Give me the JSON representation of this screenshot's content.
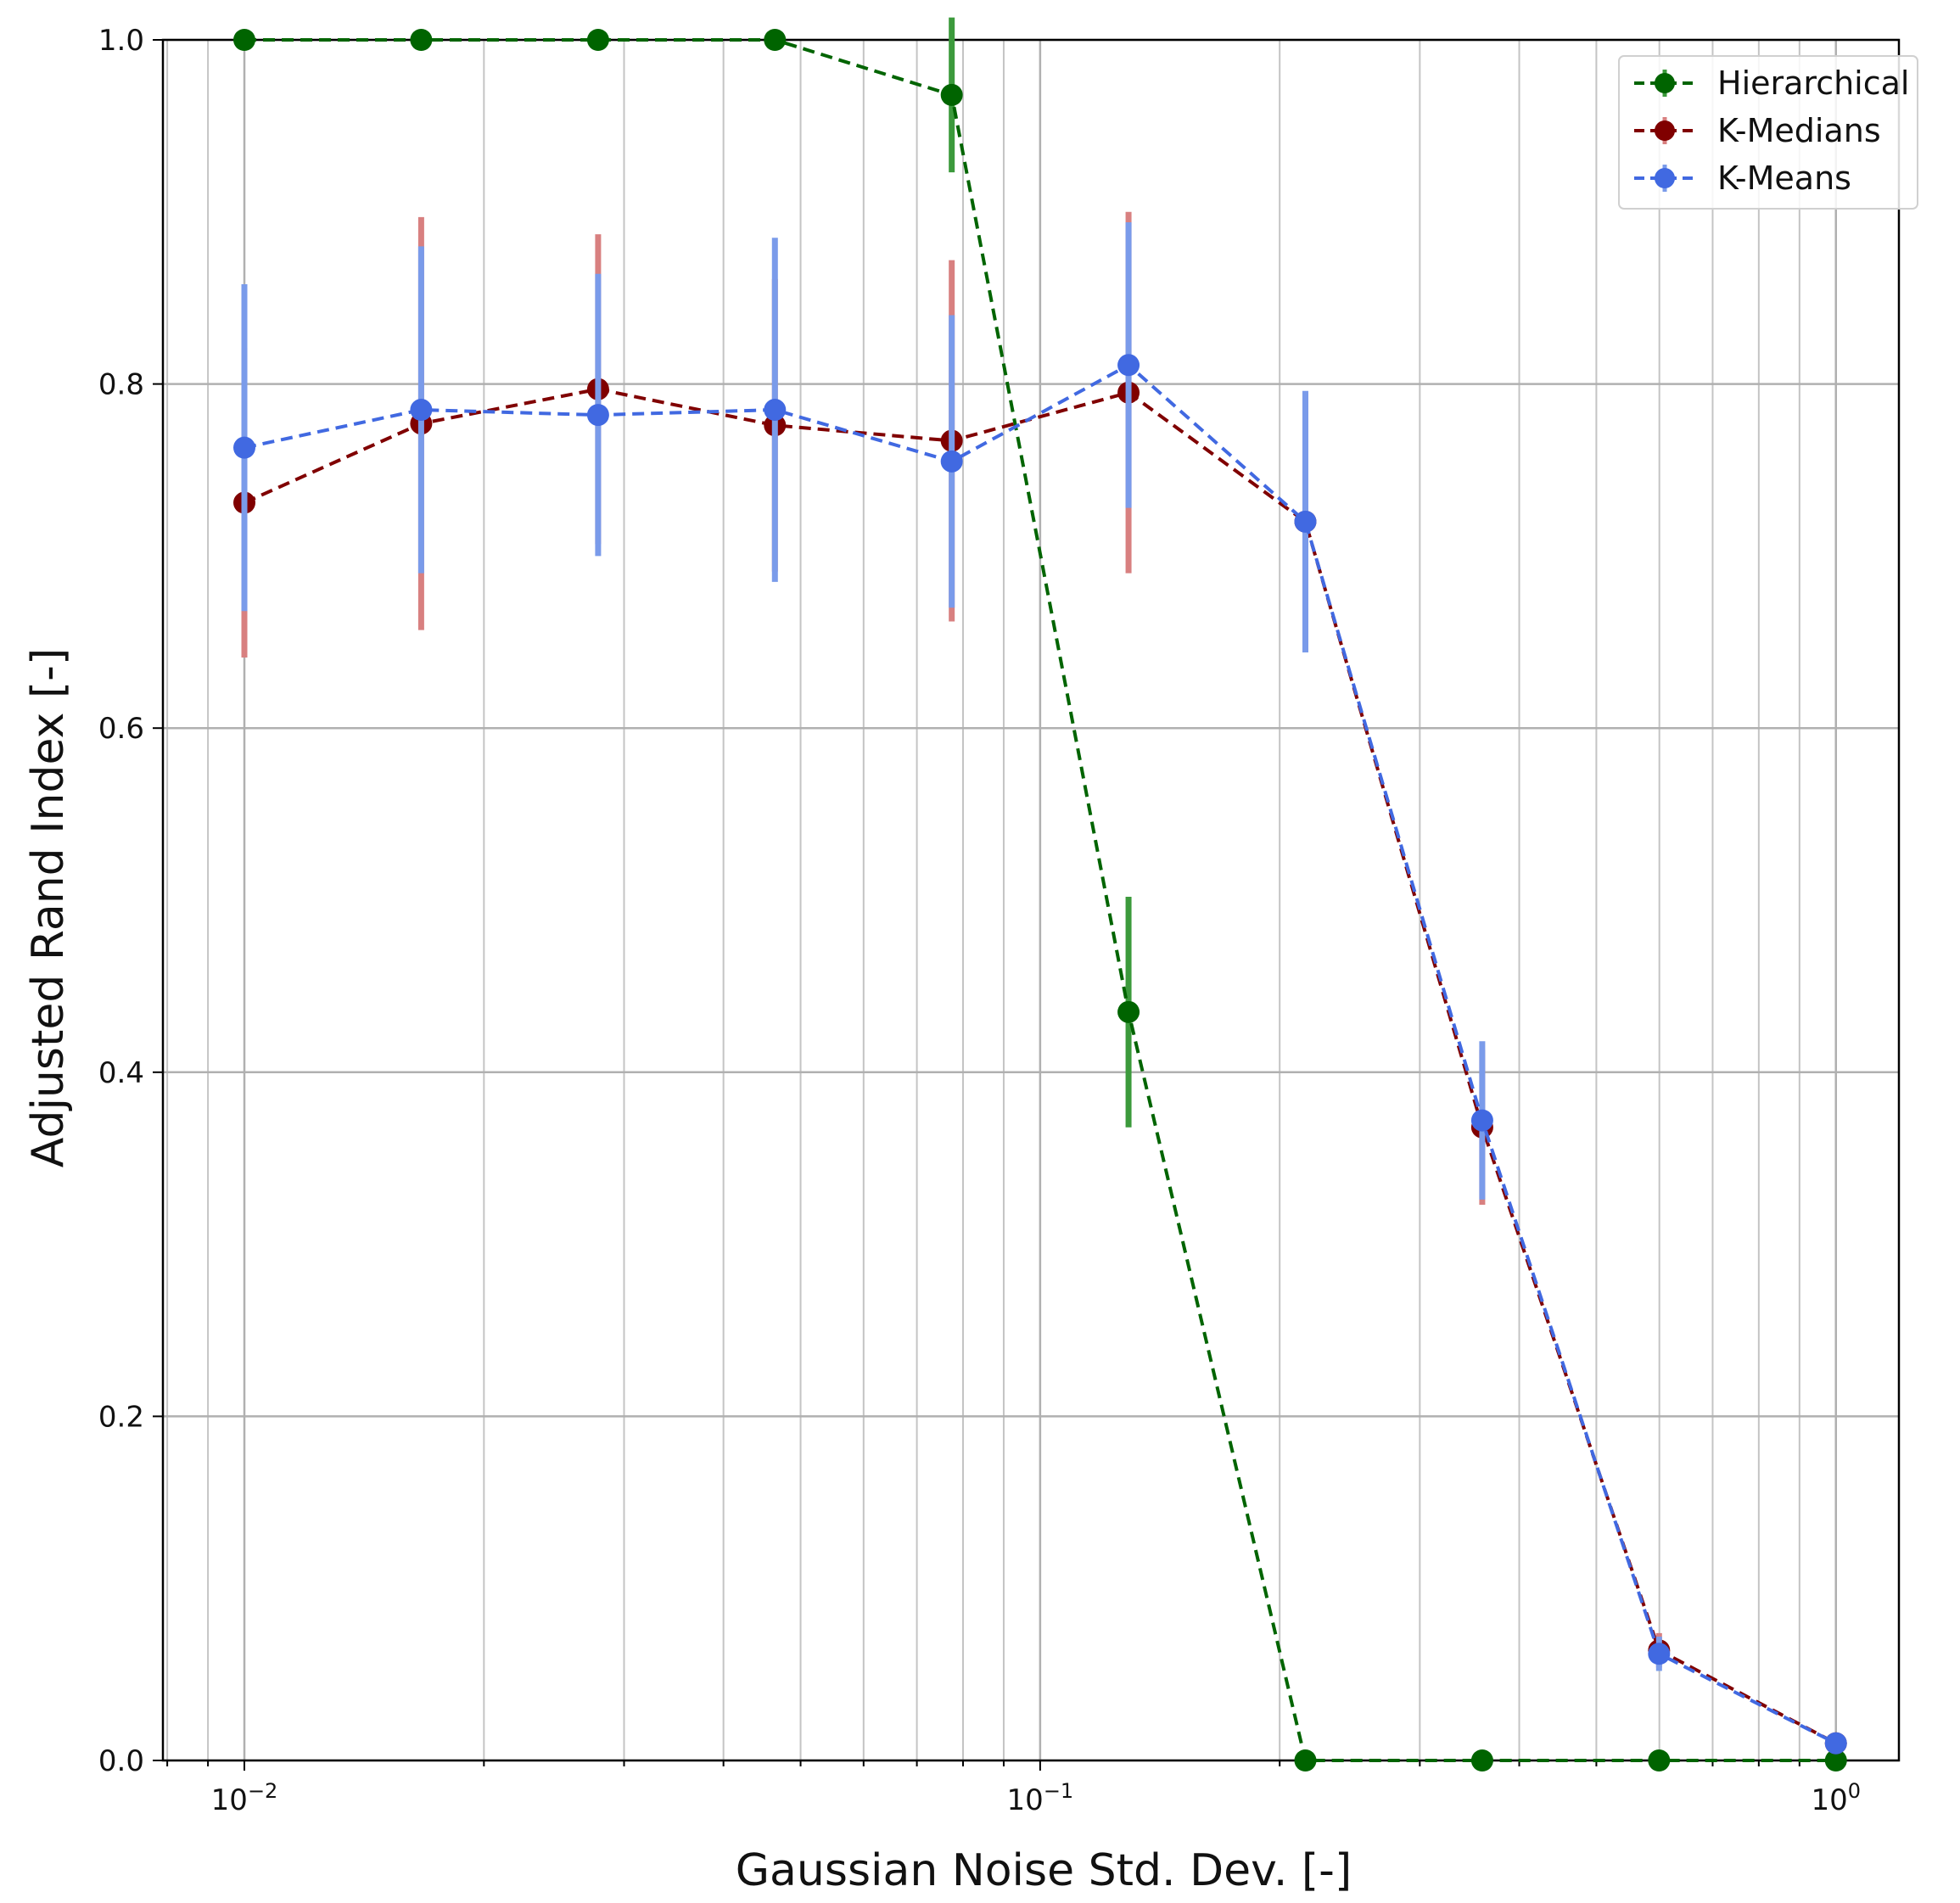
{
  "chart_data": {
    "type": "line",
    "title": "",
    "xlabel": "Gaussian Noise Std. Dev. [-]",
    "ylabel": "Adjusted Rand Index [-]",
    "xscale": "log",
    "xlim": [
      0.0079,
      1.2
    ],
    "ylim": [
      0.0,
      1.0
    ],
    "grid": true,
    "legend_position": "top-right",
    "x": [
      0.01,
      0.01668,
      0.02783,
      0.04642,
      0.07743,
      0.12915,
      0.21544,
      0.35938,
      0.59948,
      1.0
    ],
    "x_tick_labels": [
      {
        "value": 0.01,
        "base": "10",
        "exp": "−2"
      },
      {
        "value": 0.1,
        "base": "10",
        "exp": "−1"
      },
      {
        "value": 1.0,
        "base": "10",
        "exp": "0"
      }
    ],
    "y_ticks": [
      0.0,
      0.2,
      0.4,
      0.6,
      0.8,
      1.0
    ],
    "y_tick_labels": [
      "0.0",
      "0.2",
      "0.4",
      "0.6",
      "0.8",
      "1.0"
    ],
    "series": [
      {
        "name": "Hierarchical",
        "color": "#006400",
        "error_color": "#3c9a3c",
        "values": [
          1.0,
          1.0,
          1.0,
          1.0,
          0.968,
          0.435,
          0.0,
          0.0,
          0.0,
          0.0
        ],
        "errors": [
          0.0,
          0.0,
          0.0,
          0.0,
          0.045,
          0.067,
          0.0,
          0.0,
          0.0,
          0.0
        ]
      },
      {
        "name": "K-Medians",
        "color": "#800000",
        "error_color": "#d88080",
        "values": [
          0.731,
          0.777,
          0.797,
          0.776,
          0.767,
          0.795,
          0.72,
          0.368,
          0.064,
          0.01
        ],
        "errors": [
          0.09,
          0.12,
          0.09,
          0.085,
          0.105,
          0.105,
          0.075,
          0.045,
          0.01,
          0.0
        ]
      },
      {
        "name": "K-Means",
        "color": "#4169e1",
        "error_color": "#7a9bea",
        "values": [
          0.763,
          0.785,
          0.782,
          0.785,
          0.755,
          0.811,
          0.72,
          0.372,
          0.062,
          0.01
        ],
        "errors": [
          0.095,
          0.095,
          0.082,
          0.1,
          0.085,
          0.083,
          0.076,
          0.046,
          0.01,
          0.0
        ]
      }
    ]
  }
}
